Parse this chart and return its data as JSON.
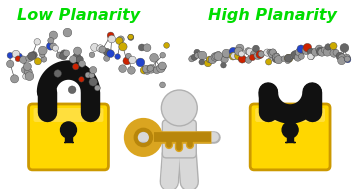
{
  "title_left": "Low Planarity",
  "title_right": "High Planarity",
  "title_color": "#00dd00",
  "title_fontsize": 11.5,
  "title_fontweight": "bold",
  "bg_color": "#ffffff",
  "fig_width": 3.58,
  "fig_height": 1.89,
  "dpi": 100,
  "lock_color": "#FFD700",
  "lock_shade": "#E6B800",
  "lock_dark": "#CC9900",
  "shackle_color": "#111111",
  "keyhole_color": "#111111",
  "key_gold": "#B8860B",
  "key_gold_light": "#DAA520",
  "person_color": "#d8d8d8",
  "person_edge": "#b0b0b0"
}
